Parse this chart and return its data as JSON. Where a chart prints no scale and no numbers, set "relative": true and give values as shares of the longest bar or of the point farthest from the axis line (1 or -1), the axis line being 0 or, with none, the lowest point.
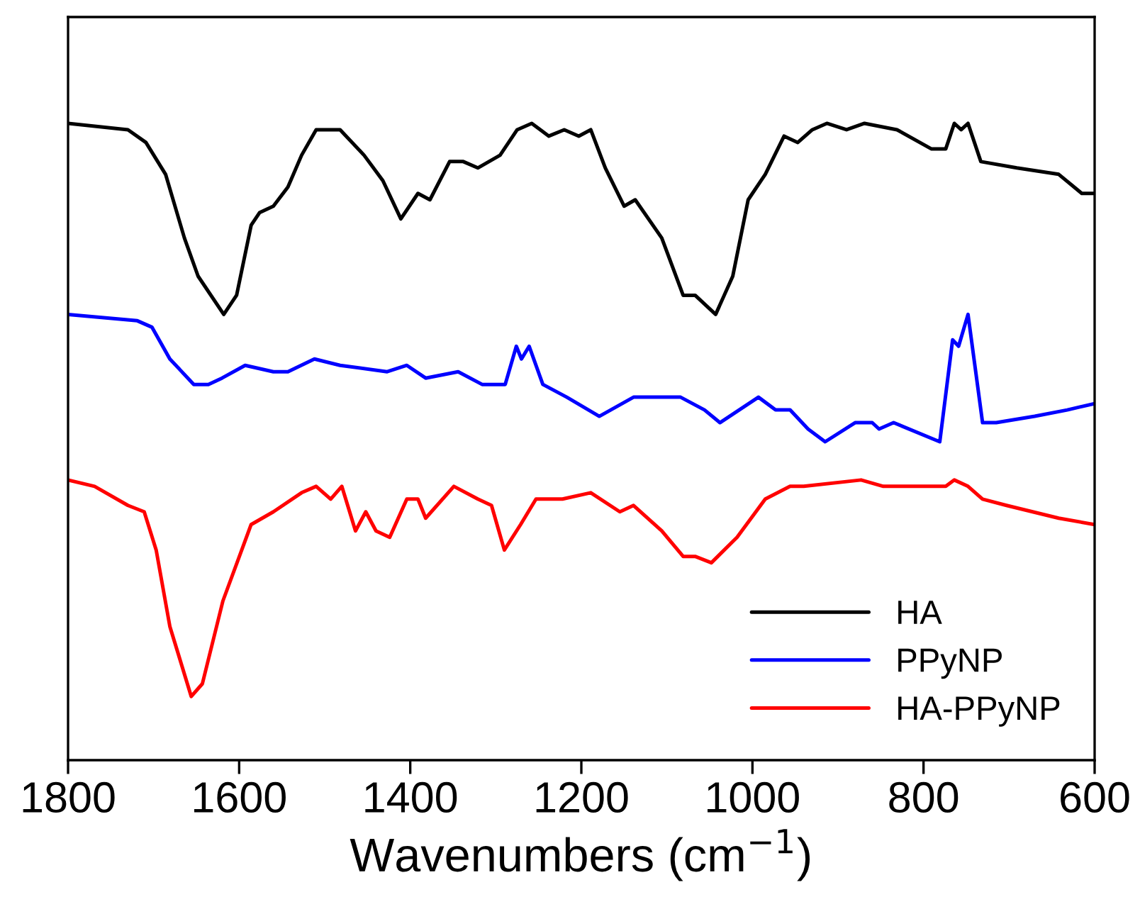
{
  "chart_data": {
    "type": "line",
    "relative": true,
    "xlabel": "Wavenumbers (cm$^{−1}$)",
    "xlim": [
      1800,
      600
    ],
    "xticks": [
      1800,
      1600,
      1400,
      1200,
      1000,
      800,
      600
    ],
    "legend": "bottom right",
    "grid": false,
    "tick_labels": "x",
    "series": [
      {
        "name": "HA",
        "color": "#000000",
        "x": [
          1800,
          1730,
          1709,
          1686,
          1664,
          1648,
          1618,
          1603,
          1586,
          1576,
          1560,
          1543,
          1527,
          1510,
          1482,
          1454,
          1432,
          1411,
          1391,
          1377,
          1354,
          1338,
          1321,
          1295,
          1275,
          1258,
          1238,
          1220,
          1203,
          1189,
          1172,
          1150,
          1137,
          1106,
          1081,
          1067,
          1043,
          1023,
          1005,
          985,
          963,
          947,
          930,
          913,
          890,
          869,
          831,
          791,
          774,
          764,
          756,
          748,
          733,
          691,
          642,
          615,
          600
        ],
        "values": [
          1.0,
          0.99,
          0.97,
          0.92,
          0.82,
          0.76,
          0.7,
          0.73,
          0.84,
          0.86,
          0.87,
          0.9,
          0.95,
          0.99,
          0.99,
          0.95,
          0.91,
          0.85,
          0.89,
          0.88,
          0.94,
          0.94,
          0.93,
          0.95,
          0.99,
          1.0,
          0.98,
          0.99,
          0.98,
          0.99,
          0.93,
          0.87,
          0.88,
          0.82,
          0.73,
          0.73,
          0.7,
          0.76,
          0.88,
          0.92,
          0.98,
          0.97,
          0.99,
          1.0,
          0.99,
          1.0,
          0.99,
          0.96,
          0.96,
          1.0,
          0.99,
          1.0,
          0.94,
          0.93,
          0.92,
          0.89,
          0.89
        ]
      },
      {
        "name": "PPyNP",
        "color": "#0000ff",
        "x": [
          1800,
          1719,
          1702,
          1681,
          1653,
          1636,
          1620,
          1593,
          1560,
          1543,
          1512,
          1482,
          1427,
          1404,
          1382,
          1344,
          1316,
          1289,
          1276,
          1270,
          1261,
          1245,
          1217,
          1179,
          1139,
          1084,
          1056,
          1038,
          993,
          973,
          956,
          935,
          915,
          880,
          860,
          852,
          835,
          781,
          766,
          759,
          748,
          731,
          715,
          670,
          632,
          600
        ],
        "values": [
          0.7,
          0.69,
          0.68,
          0.63,
          0.59,
          0.59,
          0.6,
          0.62,
          0.61,
          0.61,
          0.63,
          0.62,
          0.61,
          0.62,
          0.6,
          0.61,
          0.59,
          0.59,
          0.65,
          0.63,
          0.65,
          0.59,
          0.57,
          0.54,
          0.57,
          0.57,
          0.55,
          0.53,
          0.57,
          0.55,
          0.55,
          0.52,
          0.5,
          0.53,
          0.53,
          0.52,
          0.53,
          0.5,
          0.66,
          0.65,
          0.7,
          0.53,
          0.53,
          0.54,
          0.55,
          0.56
        ]
      },
      {
        "name": "HA-PPyNP",
        "color": "#ff0000",
        "x": [
          1800,
          1769,
          1730,
          1711,
          1697,
          1681,
          1656,
          1643,
          1619,
          1586,
          1560,
          1527,
          1510,
          1493,
          1480,
          1464,
          1452,
          1440,
          1424,
          1404,
          1391,
          1382,
          1349,
          1321,
          1305,
          1290,
          1271,
          1253,
          1222,
          1189,
          1155,
          1139,
          1106,
          1081,
          1067,
          1048,
          1018,
          985,
          956,
          940,
          873,
          847,
          819,
          774,
          764,
          748,
          731,
          703,
          642,
          600
        ],
        "values": [
          0.44,
          0.43,
          0.4,
          0.39,
          0.33,
          0.21,
          0.1,
          0.12,
          0.25,
          0.37,
          0.39,
          0.42,
          0.43,
          0.41,
          0.43,
          0.36,
          0.39,
          0.36,
          0.35,
          0.41,
          0.41,
          0.38,
          0.43,
          0.41,
          0.4,
          0.33,
          0.37,
          0.41,
          0.41,
          0.42,
          0.39,
          0.4,
          0.36,
          0.32,
          0.32,
          0.31,
          0.35,
          0.41,
          0.43,
          0.43,
          0.44,
          0.43,
          0.43,
          0.43,
          0.44,
          0.43,
          0.41,
          0.4,
          0.38,
          0.37
        ]
      }
    ]
  }
}
